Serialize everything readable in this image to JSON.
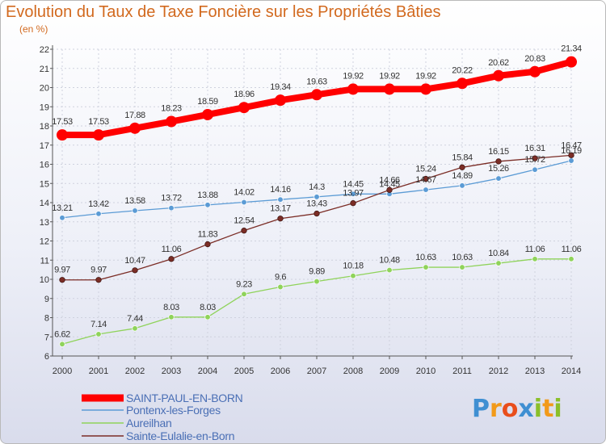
{
  "title": "Evolution du Taux de Taxe Foncière sur les Propriétés Bâties",
  "subtitle": "(en %)",
  "logo": {
    "letters": [
      "P",
      "r",
      "o",
      "x",
      "i",
      "t",
      "i"
    ],
    "colors": [
      "#3f8fd2",
      "#f29a1a",
      "#e94e1b",
      "#3f8fd2",
      "#8bbf2a",
      "#f29a1a",
      "#8bbf2a"
    ]
  },
  "chart_data": {
    "type": "line",
    "title": "Evolution du Taux de Taxe Foncière sur les Propriétés Bâties",
    "ylabel": "(en %)",
    "xlabel": "",
    "x": [
      "2000",
      "2001",
      "2002",
      "2003",
      "2004",
      "2005",
      "2006",
      "2007",
      "2008",
      "2009",
      "2010",
      "2011",
      "2012",
      "2013",
      "2014"
    ],
    "ylim": [
      6,
      22
    ],
    "yticks": [
      "6",
      "7",
      "8",
      "9",
      "10",
      "11",
      "12",
      "13",
      "14",
      "15",
      "16",
      "17",
      "18",
      "19",
      "20",
      "21",
      "22"
    ],
    "series": [
      {
        "name": "SAINT-PAUL-EN-BORN",
        "color": "#ff0000",
        "values": [
          17.53,
          17.53,
          17.88,
          18.23,
          18.59,
          18.96,
          19.34,
          19.63,
          19.92,
          19.92,
          19.92,
          20.22,
          20.62,
          20.83,
          21.34
        ],
        "labels": [
          "17.53",
          "17.53",
          "17.88",
          "18.23",
          "18.59",
          "18.96",
          "19.34",
          "19.63",
          "19.92",
          "19.92",
          "19.92",
          "20.22",
          "20.62",
          "20.83",
          "21.34"
        ]
      },
      {
        "name": "Pontenx-les-Forges",
        "color": "#5b9bd5",
        "values": [
          13.21,
          13.42,
          13.58,
          13.72,
          13.88,
          14.02,
          14.16,
          14.3,
          14.45,
          14.45,
          14.67,
          14.89,
          15.26,
          15.72,
          16.19
        ],
        "labels": [
          "13.21",
          "13.42",
          "13.58",
          "13.72",
          "13.88",
          "14.02",
          "14.16",
          "14.3",
          "14.45",
          "14.45",
          "14.67",
          "14.89",
          "15.26",
          "15.72",
          "16.19"
        ]
      },
      {
        "name": "Aureilhan",
        "color": "#8fd35a",
        "values": [
          6.62,
          7.14,
          7.44,
          8.03,
          8.03,
          9.23,
          9.6,
          9.89,
          10.18,
          10.48,
          10.63,
          10.63,
          10.84,
          11.06,
          11.06
        ],
        "labels": [
          "6.62",
          "7.14",
          "7.44",
          "8.03",
          "8.03",
          "9.23",
          "9.6",
          "9.89",
          "10.18",
          "10.48",
          "10.63",
          "10.63",
          "10.84",
          "11.06",
          "11.06"
        ]
      },
      {
        "name": "Sainte-Eulalie-en-Born",
        "color": "#7b2d26",
        "values": [
          9.97,
          9.97,
          10.47,
          11.06,
          11.83,
          12.54,
          13.17,
          13.43,
          13.97,
          14.66,
          15.24,
          15.84,
          16.15,
          16.31,
          16.47
        ],
        "labels": [
          "9.97",
          "9.97",
          "10.47",
          "11.06",
          "11.83",
          "12.54",
          "13.17",
          "13.43",
          "13.97",
          "14.66",
          "15.24",
          "15.84",
          "16.15",
          "16.31",
          "16.47"
        ]
      }
    ],
    "legend": "bottom-left"
  }
}
